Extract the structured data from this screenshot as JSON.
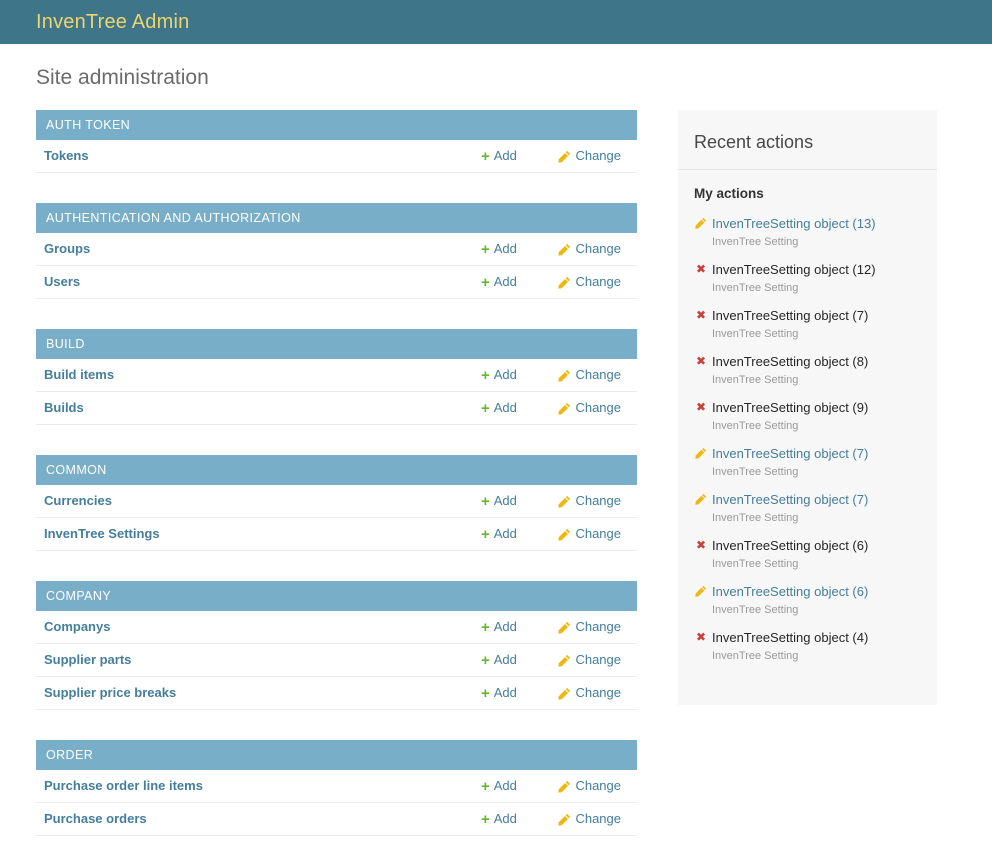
{
  "header": {
    "title": "InvenTree Admin"
  },
  "page_title": "Site administration",
  "row_actions": {
    "add_label": "Add",
    "change_label": "Change"
  },
  "app_list": [
    {
      "name": "AUTH TOKEN",
      "models": [
        "Tokens"
      ]
    },
    {
      "name": "AUTHENTICATION AND AUTHORIZATION",
      "models": [
        "Groups",
        "Users"
      ]
    },
    {
      "name": "BUILD",
      "models": [
        "Build items",
        "Builds"
      ]
    },
    {
      "name": "COMMON",
      "models": [
        "Currencies",
        "InvenTree Settings"
      ]
    },
    {
      "name": "COMPANY",
      "models": [
        "Companys",
        "Supplier parts",
        "Supplier price breaks"
      ]
    },
    {
      "name": "ORDER",
      "models": [
        "Purchase order line items",
        "Purchase orders"
      ]
    }
  ],
  "recent_actions": {
    "title": "Recent actions",
    "subtitle": "My actions",
    "items": [
      {
        "type": "change",
        "label": "InvenTreeSetting object (13)",
        "meta": "InvenTree Setting"
      },
      {
        "type": "delete",
        "label": "InvenTreeSetting object (12)",
        "meta": "InvenTree Setting"
      },
      {
        "type": "delete",
        "label": "InvenTreeSetting object (7)",
        "meta": "InvenTree Setting"
      },
      {
        "type": "delete",
        "label": "InvenTreeSetting object (8)",
        "meta": "InvenTree Setting"
      },
      {
        "type": "delete",
        "label": "InvenTreeSetting object (9)",
        "meta": "InvenTree Setting"
      },
      {
        "type": "change",
        "label": "InvenTreeSetting object (7)",
        "meta": "InvenTree Setting"
      },
      {
        "type": "change",
        "label": "InvenTreeSetting object (7)",
        "meta": "InvenTree Setting"
      },
      {
        "type": "delete",
        "label": "InvenTreeSetting object (6)",
        "meta": "InvenTree Setting"
      },
      {
        "type": "change",
        "label": "InvenTreeSetting object (6)",
        "meta": "InvenTree Setting"
      },
      {
        "type": "delete",
        "label": "InvenTreeSetting object (4)",
        "meta": "InvenTree Setting"
      }
    ]
  },
  "colors": {
    "header_bg": "#3f7588",
    "header_title": "#ecd46e",
    "module_caption_bg": "#79aec8",
    "link_blue": "#447e9b",
    "add_green": "#68b62d",
    "pencil_gold": "#efb810",
    "delete_red": "#c9413d",
    "panel_bg": "#f7f7f7"
  }
}
